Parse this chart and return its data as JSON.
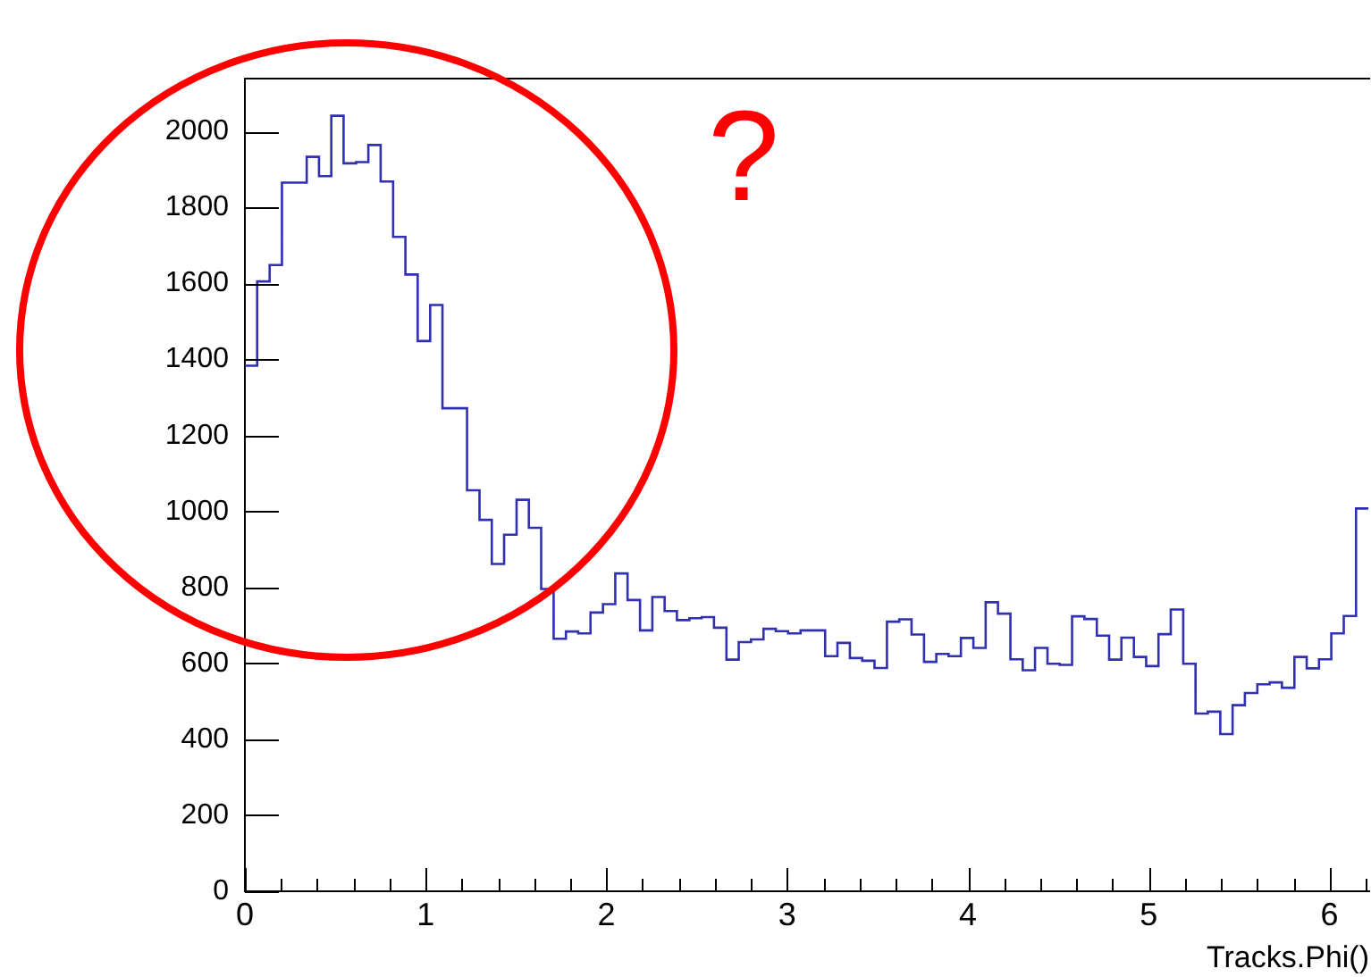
{
  "chart_data": {
    "type": "histogram",
    "xlabel": "Tracks.Phi()",
    "color": "#3030b0",
    "annotations": [
      "?"
    ],
    "bins": [
      0,
      0.068,
      0.137,
      0.205,
      0.273,
      0.342,
      0.41,
      0.478,
      0.546,
      0.615,
      0.683,
      0.751,
      0.82,
      0.888,
      0.956,
      1.025,
      1.093,
      1.161,
      1.229,
      1.298,
      1.366,
      1.434,
      1.503,
      1.571,
      1.639,
      1.708,
      1.776,
      1.844,
      1.912,
      1.981,
      2.049,
      2.117,
      2.186,
      2.254,
      2.322,
      2.39,
      2.459,
      2.527,
      2.595,
      2.664,
      2.732,
      2.8,
      2.869,
      2.937,
      3.005,
      3.074,
      3.142,
      3.21,
      3.278,
      3.347,
      3.415,
      3.483,
      3.552,
      3.62,
      3.688,
      3.757,
      3.825,
      3.893,
      3.961,
      4.03,
      4.098,
      4.166,
      4.235,
      4.303,
      4.371,
      4.44,
      4.508,
      4.576,
      4.644,
      4.713,
      4.781,
      4.849,
      4.918,
      4.986,
      5.054,
      5.122,
      5.191,
      5.259,
      5.327,
      5.396,
      5.464,
      5.532,
      5.601,
      5.669,
      5.737,
      5.806,
      5.874,
      5.942,
      6.01,
      6.079,
      6.147,
      6.215
    ],
    "values": [
      1384,
      1606,
      1649,
      1866,
      1866,
      1934,
      1883,
      2042,
      1917,
      1920,
      1965,
      1869,
      1723,
      1624,
      1449,
      1544,
      1272,
      1272,
      1056,
      978,
      862,
      939,
      1031,
      957,
      796,
      665,
      684,
      679,
      734,
      756,
      837,
      767,
      687,
      775,
      738,
      714,
      719,
      722,
      694,
      610,
      656,
      663,
      691,
      685,
      679,
      687,
      687,
      619,
      654,
      614,
      607,
      588,
      710,
      716,
      676,
      604,
      625,
      619,
      667,
      641,
      761,
      731,
      611,
      582,
      641,
      599,
      596,
      724,
      717,
      673,
      610,
      668,
      617,
      593,
      677,
      742,
      599,
      468,
      473,
      414,
      490,
      522,
      545,
      550,
      536,
      617,
      587,
      611,
      679,
      725,
      1008
    ],
    "xlim": [
      0,
      6.22
    ],
    "xticks": [
      0,
      {
        "value": 0.2,
        "label": null
      },
      {
        "value": 0.4,
        "label": null
      },
      {
        "value": 0.6,
        "label": null
      },
      {
        "value": 0.8,
        "label": null
      },
      1,
      {
        "value": 1.2,
        "label": null
      },
      {
        "value": 1.4,
        "label": null
      },
      {
        "value": 1.6,
        "label": null
      },
      {
        "value": 1.8,
        "label": null
      },
      2,
      {
        "value": 2.2,
        "label": null
      },
      {
        "value": 2.4,
        "label": null
      },
      {
        "value": 2.6,
        "label": null
      },
      {
        "value": 2.8,
        "label": null
      },
      3,
      {
        "value": 3.2,
        "label": null
      },
      {
        "value": 3.4,
        "label": null
      },
      {
        "value": 3.6,
        "label": null
      },
      {
        "value": 3.8,
        "label": null
      },
      4,
      {
        "value": 4.2,
        "label": null
      },
      {
        "value": 4.4,
        "label": null
      },
      {
        "value": 4.6,
        "label": null
      },
      {
        "value": 4.8,
        "label": null
      },
      5,
      {
        "value": 5.2,
        "label": null
      },
      {
        "value": 5.4,
        "label": null
      },
      {
        "value": 5.6,
        "label": null
      },
      {
        "value": 5.8,
        "label": null
      },
      6,
      {
        "value": 6.2,
        "label": null
      }
    ],
    "ylim": [
      0,
      2140
    ],
    "yticks": [
      0,
      200,
      400,
      600,
      800,
      1000,
      1200,
      1400,
      1600,
      1800,
      2000
    ]
  }
}
